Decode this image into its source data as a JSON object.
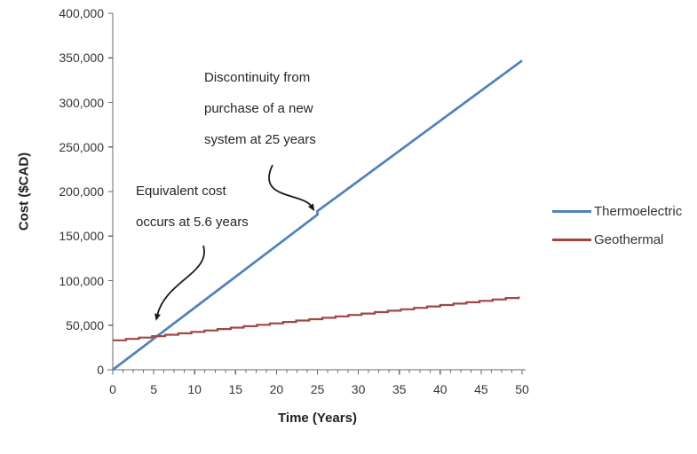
{
  "chart_data": {
    "type": "line",
    "xlabel": "Time (Years)",
    "ylabel": "Cost ($CAD)",
    "xlim": [
      0,
      50
    ],
    "ylim": [
      0,
      400000
    ],
    "grid": false,
    "legend_position": "right-middle",
    "x_major_ticks": [
      0,
      5,
      10,
      15,
      20,
      25,
      30,
      35,
      40,
      45,
      50
    ],
    "x_tick_labels": [
      "0",
      "5",
      "10",
      "15",
      "20",
      "25",
      "30",
      "35",
      "40",
      "45",
      "50"
    ],
    "x_minor_tick_step": 1.25,
    "y_ticks": [
      0,
      50000,
      100000,
      150000,
      200000,
      250000,
      300000,
      350000,
      400000
    ],
    "y_tick_labels": [
      "0",
      "50,000",
      "100,000",
      "150,000",
      "200,000",
      "250,000",
      "300,000",
      "350,000",
      "400,000"
    ],
    "axis_color": "#6a6a6a",
    "series": [
      {
        "name": "Thermoelectric",
        "color": "#4F81BD",
        "style": "linear",
        "points": [
          [
            0,
            0
          ],
          [
            25,
            174000
          ],
          [
            25,
            178000
          ],
          [
            50,
            347000
          ]
        ]
      },
      {
        "name": "Geothermal",
        "color": "#9E4743",
        "style": "stepped",
        "step_years": 1.6,
        "points": [
          [
            0,
            33000
          ],
          [
            50,
            82500
          ]
        ]
      }
    ],
    "annotations": [
      {
        "id": "discontinuity",
        "text_lines": [
          "Discontinuity from",
          "purchase of a new",
          "system at 25 years"
        ],
        "arrow_target_data": [
          25,
          180000
        ]
      },
      {
        "id": "equivalent-cost",
        "text_lines": [
          "Equivalent cost",
          "occurs at 5.6 years"
        ],
        "arrow_target_data": [
          5.6,
          39000
        ]
      }
    ]
  },
  "legend": {
    "items": [
      {
        "label": "Thermoelectric",
        "color": "#4F81BD"
      },
      {
        "label": "Geothermal",
        "color": "#9E4743"
      }
    ]
  }
}
